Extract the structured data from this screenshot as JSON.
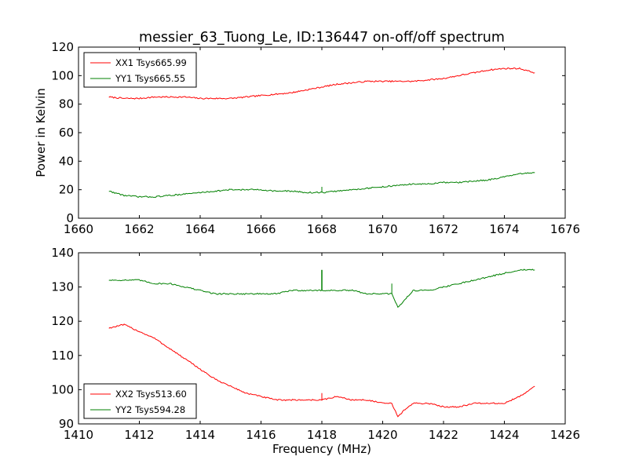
{
  "chart_data": [
    {
      "type": "line",
      "title": "messier_63_Tuong_Le, ID:136447 on-off/off spectrum",
      "xlabel": "",
      "ylabel": "Power in Kelvin",
      "xlim": [
        1660,
        1676
      ],
      "ylim": [
        0,
        120
      ],
      "xticks": [
        1660,
        1662,
        1664,
        1666,
        1668,
        1670,
        1672,
        1674,
        1676
      ],
      "yticks": [
        0,
        20,
        40,
        60,
        80,
        100,
        120
      ],
      "legend_position": "upper-left",
      "grid": false,
      "series": [
        {
          "name": "XX1 Tsys665.99",
          "color": "#ff0000",
          "x": [
            1661.0,
            1661.5,
            1662.0,
            1662.5,
            1663.0,
            1663.5,
            1664.0,
            1664.5,
            1665.0,
            1665.5,
            1666.0,
            1666.5,
            1667.0,
            1667.5,
            1668.0,
            1668.5,
            1669.0,
            1669.5,
            1670.0,
            1670.5,
            1671.0,
            1671.5,
            1672.0,
            1672.5,
            1673.0,
            1673.5,
            1674.0,
            1674.5,
            1675.0
          ],
          "y": [
            85,
            84,
            84,
            85,
            85,
            85,
            84,
            84,
            84,
            85,
            86,
            87,
            88,
            90,
            92,
            94,
            95,
            96,
            96,
            96,
            96,
            97,
            98,
            100,
            102,
            104,
            105,
            105,
            102
          ]
        },
        {
          "name": "YY1 Tsys665.55",
          "color": "#008000",
          "x": [
            1661.0,
            1661.5,
            1662.0,
            1662.5,
            1663.0,
            1663.5,
            1664.0,
            1664.5,
            1665.0,
            1665.5,
            1666.0,
            1666.5,
            1667.0,
            1667.5,
            1668.0,
            1668.5,
            1669.0,
            1669.5,
            1670.0,
            1670.5,
            1671.0,
            1671.5,
            1672.0,
            1672.5,
            1673.0,
            1673.5,
            1674.0,
            1674.5,
            1675.0
          ],
          "y": [
            19,
            16,
            15,
            15,
            16,
            17,
            18,
            19,
            20,
            20,
            20,
            19,
            19,
            18,
            18,
            19,
            20,
            21,
            22,
            23,
            24,
            24,
            25,
            25,
            26,
            27,
            29,
            31,
            32
          ]
        }
      ]
    },
    {
      "type": "line",
      "title": "",
      "xlabel": "Frequency (MHz)",
      "ylabel": "",
      "xlim": [
        1410,
        1426
      ],
      "ylim": [
        90,
        140
      ],
      "xticks": [
        1410,
        1412,
        1414,
        1416,
        1418,
        1420,
        1422,
        1424,
        1426
      ],
      "yticks": [
        90,
        100,
        110,
        120,
        130,
        140
      ],
      "legend_position": "lower-left",
      "grid": false,
      "series": [
        {
          "name": "XX2 Tsys513.60",
          "color": "#ff0000",
          "x": [
            1411.0,
            1411.5,
            1412.0,
            1412.5,
            1413.0,
            1413.5,
            1414.0,
            1414.5,
            1415.0,
            1415.5,
            1416.0,
            1416.5,
            1417.0,
            1417.5,
            1418.0,
            1418.5,
            1419.0,
            1419.5,
            1420.0,
            1420.3,
            1420.5,
            1420.7,
            1421.0,
            1421.5,
            1422.0,
            1422.5,
            1423.0,
            1423.5,
            1424.0,
            1424.5,
            1425.0
          ],
          "y": [
            118,
            119,
            117,
            115,
            112,
            109,
            106,
            103,
            101,
            99,
            98,
            97,
            97,
            97,
            97,
            98,
            97,
            97,
            96,
            96,
            92,
            94,
            96,
            96,
            95,
            95,
            96,
            96,
            96,
            98,
            101
          ]
        },
        {
          "name": "YY2 Tsys594.28",
          "color": "#008000",
          "x": [
            1411.0,
            1411.5,
            1412.0,
            1412.5,
            1413.0,
            1413.5,
            1414.0,
            1414.5,
            1415.0,
            1415.5,
            1416.0,
            1416.5,
            1417.0,
            1417.5,
            1418.0,
            1418.5,
            1419.0,
            1419.5,
            1420.0,
            1420.3,
            1420.5,
            1420.7,
            1421.0,
            1421.5,
            1422.0,
            1422.5,
            1423.0,
            1423.5,
            1424.0,
            1424.5,
            1425.0
          ],
          "y": [
            132,
            132,
            132,
            131,
            131,
            130,
            129,
            128,
            128,
            128,
            128,
            128,
            129,
            129,
            129,
            129,
            129,
            128,
            128,
            128,
            124,
            126,
            129,
            129,
            130,
            131,
            132,
            133,
            134,
            135,
            135
          ]
        }
      ]
    }
  ]
}
